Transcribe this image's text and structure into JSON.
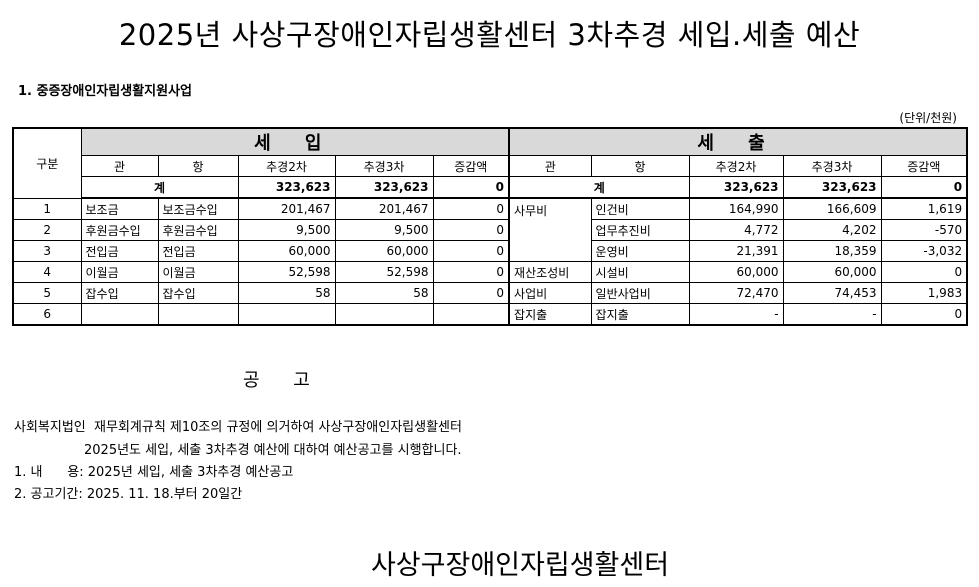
{
  "title": "2025년 사상구장애인자립생활센터 3차추경 세입.세출 예산",
  "section": "1. 중증장애인자립생활지원사업",
  "unit": "(단위/천원)",
  "table": {
    "gubun": "구분",
    "income_header": "세 입",
    "expense_header": "세 출",
    "columns": [
      "관",
      "항",
      "추경2차",
      "추경3차",
      "증감액"
    ],
    "total_label": "계",
    "income_total": {
      "budget2": "323,623",
      "budget3": "323,623",
      "diff": "0"
    },
    "expense_total": {
      "budget2": "323,623",
      "budget3": "323,623",
      "diff": "0"
    },
    "rows": [
      {
        "no": "1",
        "in": [
          "보조금",
          "보조금수입",
          "201,467",
          "201,467",
          "0"
        ],
        "out_gwan": "사무비",
        "out": [
          "인건비",
          "164,990",
          "166,609",
          "1,619"
        ]
      },
      {
        "no": "2",
        "in": [
          "후원금수입",
          "후원금수입",
          "9,500",
          "9,500",
          "0"
        ],
        "out": [
          "업무추진비",
          "4,772",
          "4,202",
          "-570"
        ]
      },
      {
        "no": "3",
        "in": [
          "전입금",
          "전입금",
          "60,000",
          "60,000",
          "0"
        ],
        "out": [
          "운영비",
          "21,391",
          "18,359",
          "-3,032"
        ]
      },
      {
        "no": "4",
        "in": [
          "이월금",
          "이월금",
          "52,598",
          "52,598",
          "0"
        ],
        "out_gwan": "재산조성비",
        "out": [
          "시설비",
          "60,000",
          "60,000",
          "0"
        ]
      },
      {
        "no": "5",
        "in": [
          "잡수입",
          "잡수입",
          "58",
          "58",
          "0"
        ],
        "out_gwan": "사업비",
        "out": [
          "일반사업비",
          "72,470",
          "74,453",
          "1,983"
        ]
      },
      {
        "no": "6",
        "in": [
          "",
          "",
          "",
          "",
          ""
        ],
        "out_gwan": "잡지출",
        "out": [
          "잡지출",
          "-",
          "-",
          "0"
        ]
      }
    ]
  },
  "notice": {
    "title": "공 고",
    "line1": "사회복지법인  재무회계규칙 제10조의 규정에 의거하여 사상구장애인자립생활센터",
    "line2": "2025년도 세입, 세출 3차추경 예산에 대하여 예산공고를 시행합니다.",
    "line3": "1. 내      용: 2025년 세입, 세출 3차추경 예산공고",
    "line4": "2. 공고기간: 2025. 11. 18.부터 20일간"
  },
  "signature": "사상구장애인자립생활센터"
}
